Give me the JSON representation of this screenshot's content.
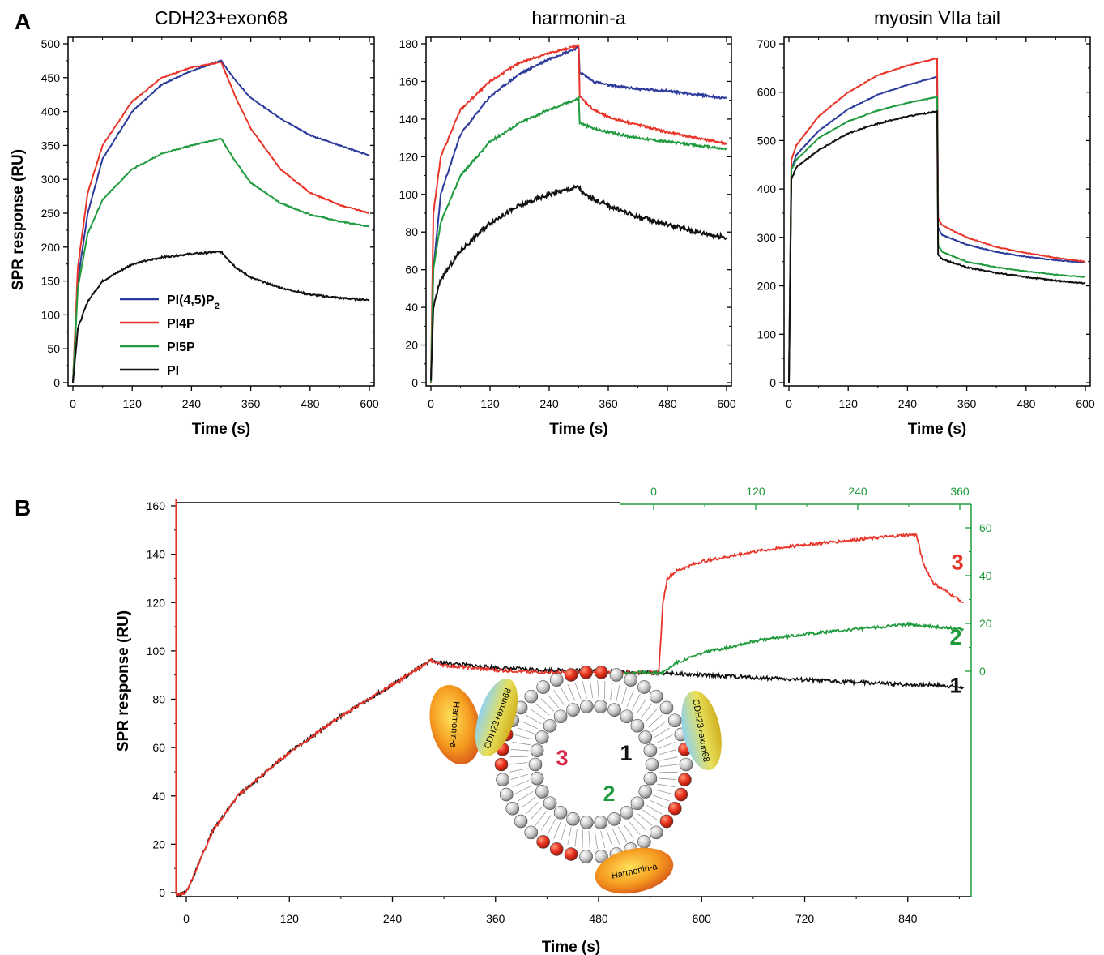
{
  "panels": {
    "a_label": "A",
    "b_label": "B"
  },
  "legend": [
    {
      "label": "PI(4,5)P",
      "sub": "2",
      "color": "#2b3a9b"
    },
    {
      "label": "PI4P",
      "sub": "",
      "color": "#e8352a"
    },
    {
      "label": "PI5P",
      "sub": "",
      "color": "#1f9a3c"
    },
    {
      "label": "PI",
      "sub": "",
      "color": "#111111"
    }
  ],
  "chart_data": [
    {
      "type": "line",
      "title": "CDH23+exon68",
      "xlabel": "Time (s)",
      "ylabel": "SPR response (RU)",
      "xlim": [
        0,
        600
      ],
      "ylim": [
        0,
        500
      ],
      "xticks": [
        0,
        120,
        240,
        360,
        480,
        600
      ],
      "yticks": [
        0,
        50,
        100,
        150,
        200,
        250,
        300,
        350,
        400,
        450,
        500
      ],
      "series": [
        {
          "name": "PI(4,5)P2",
          "color": "#2b3a9b",
          "x": [
            0,
            10,
            30,
            60,
            120,
            180,
            240,
            300,
            330,
            360,
            420,
            480,
            540,
            600
          ],
          "y": [
            0,
            150,
            250,
            330,
            400,
            440,
            460,
            475,
            445,
            420,
            390,
            365,
            350,
            335
          ]
        },
        {
          "name": "PI4P",
          "color": "#e8352a",
          "x": [
            0,
            10,
            30,
            60,
            120,
            180,
            240,
            300,
            330,
            360,
            420,
            480,
            540,
            600
          ],
          "y": [
            0,
            170,
            280,
            350,
            415,
            450,
            465,
            473,
            420,
            375,
            315,
            280,
            262,
            250
          ]
        },
        {
          "name": "PI5P",
          "color": "#1f9a3c",
          "x": [
            0,
            10,
            30,
            60,
            120,
            180,
            240,
            300,
            330,
            360,
            420,
            480,
            540,
            600
          ],
          "y": [
            0,
            140,
            220,
            270,
            315,
            338,
            350,
            360,
            325,
            295,
            265,
            248,
            238,
            230
          ]
        },
        {
          "name": "PI",
          "color": "#111111",
          "x": [
            0,
            10,
            30,
            60,
            120,
            180,
            240,
            300,
            330,
            360,
            420,
            480,
            540,
            600
          ],
          "y": [
            0,
            80,
            120,
            150,
            175,
            185,
            190,
            193,
            170,
            155,
            140,
            130,
            125,
            122
          ]
        }
      ]
    },
    {
      "type": "line",
      "title": "harmonin-a",
      "xlabel": "Time (s)",
      "xlim": [
        0,
        600
      ],
      "ylim": [
        0,
        180
      ],
      "xticks": [
        0,
        120,
        240,
        360,
        480,
        600
      ],
      "yticks": [
        0,
        20,
        40,
        60,
        80,
        100,
        120,
        140,
        160,
        180
      ],
      "series": [
        {
          "name": "PI(4,5)P2",
          "color": "#2b3a9b",
          "x": [
            0,
            5,
            20,
            60,
            120,
            180,
            240,
            300,
            302,
            330,
            360,
            420,
            480,
            540,
            600
          ],
          "y": [
            0,
            60,
            100,
            132,
            152,
            164,
            172,
            178,
            165,
            160,
            158,
            156,
            155,
            153,
            151
          ]
        },
        {
          "name": "PI4P",
          "color": "#e8352a",
          "x": [
            0,
            5,
            20,
            60,
            120,
            180,
            240,
            300,
            302,
            330,
            360,
            420,
            480,
            540,
            600
          ],
          "y": [
            0,
            90,
            120,
            145,
            160,
            170,
            175,
            179,
            152,
            145,
            141,
            137,
            133,
            130,
            127
          ]
        },
        {
          "name": "PI5P",
          "color": "#1f9a3c",
          "x": [
            0,
            5,
            20,
            60,
            120,
            180,
            240,
            300,
            302,
            330,
            360,
            420,
            480,
            540,
            600
          ],
          "y": [
            0,
            60,
            85,
            110,
            128,
            138,
            145,
            151,
            138,
            135,
            133,
            130,
            128,
            126,
            124
          ]
        },
        {
          "name": "PI",
          "color": "#111111",
          "x": [
            0,
            5,
            20,
            60,
            120,
            180,
            240,
            300,
            310,
            360,
            420,
            480,
            540,
            600
          ],
          "y": [
            0,
            40,
            55,
            70,
            85,
            94,
            100,
            104,
            100,
            94,
            88,
            84,
            80,
            77
          ]
        }
      ]
    },
    {
      "type": "line",
      "title": "myosin VIIa tail",
      "xlabel": "Time (s)",
      "xlim": [
        0,
        600
      ],
      "ylim": [
        0,
        700
      ],
      "xticks": [
        0,
        120,
        240,
        360,
        480,
        600
      ],
      "yticks": [
        0,
        100,
        200,
        300,
        400,
        500,
        600,
        700
      ],
      "series": [
        {
          "name": "PI(4,5)P2",
          "color": "#2b3a9b",
          "x": [
            0,
            5,
            15,
            60,
            120,
            180,
            240,
            300,
            302,
            310,
            360,
            420,
            480,
            540,
            600
          ],
          "y": [
            0,
            440,
            470,
            520,
            565,
            595,
            615,
            632,
            320,
            305,
            285,
            270,
            260,
            253,
            248
          ]
        },
        {
          "name": "PI4P",
          "color": "#e8352a",
          "x": [
            0,
            5,
            15,
            60,
            120,
            180,
            240,
            300,
            302,
            310,
            360,
            420,
            480,
            540,
            600
          ],
          "y": [
            0,
            460,
            490,
            550,
            600,
            635,
            655,
            670,
            340,
            325,
            300,
            280,
            268,
            258,
            250
          ]
        },
        {
          "name": "PI5P",
          "color": "#1f9a3c",
          "x": [
            0,
            5,
            15,
            60,
            120,
            180,
            240,
            300,
            302,
            310,
            360,
            420,
            480,
            540,
            600
          ],
          "y": [
            0,
            440,
            460,
            505,
            540,
            562,
            578,
            590,
            285,
            270,
            250,
            238,
            230,
            223,
            218
          ]
        },
        {
          "name": "PI",
          "color": "#111111",
          "x": [
            0,
            5,
            15,
            60,
            120,
            180,
            240,
            300,
            302,
            310,
            360,
            420,
            480,
            540,
            600
          ],
          "y": [
            0,
            420,
            445,
            480,
            515,
            535,
            550,
            560,
            265,
            255,
            238,
            227,
            218,
            211,
            205
          ]
        }
      ]
    },
    {
      "type": "line",
      "xlabel": "Time (s)",
      "ylabel": "SPR response (RU)",
      "xlim": [
        0,
        910
      ],
      "ylim": [
        0,
        160
      ],
      "xticks": [
        0,
        120,
        240,
        360,
        480,
        600,
        720,
        840
      ],
      "yticks": [
        0,
        20,
        40,
        60,
        80,
        100,
        120,
        140,
        160
      ],
      "secondary_axis": {
        "xlim": [
          0,
          360
        ],
        "ylim": [
          0,
          70
        ],
        "xticks": [
          0,
          120,
          240,
          360
        ],
        "yticks": [
          0,
          20,
          40,
          60
        ]
      },
      "series": [
        {
          "name": "1",
          "color": "#111111",
          "x": [
            -12,
            -12,
            -10,
            0,
            30,
            60,
            120,
            180,
            240,
            285,
            300,
            360,
            420,
            480,
            510,
            540,
            600,
            660,
            720,
            780,
            840,
            870,
            905
          ],
          "y": [
            163,
            0,
            -1,
            0,
            25,
            40,
            58,
            73,
            86,
            96,
            95,
            93,
            92,
            92,
            91,
            91,
            90,
            89,
            88,
            87,
            86,
            86,
            85
          ]
        },
        {
          "name": "2",
          "color": "#1f9a3c",
          "x": [
            510,
            540,
            555,
            570,
            600,
            660,
            720,
            780,
            840,
            870,
            905
          ],
          "y": [
            91,
            91,
            91,
            95,
            99,
            104,
            107,
            109,
            111,
            110,
            109
          ]
        },
        {
          "name": "3",
          "color": "#e8352a",
          "x": [
            -12,
            -12,
            -10,
            0,
            30,
            60,
            120,
            180,
            240,
            285,
            300,
            360,
            420,
            480,
            510,
            540,
            550,
            555,
            560,
            570,
            600,
            660,
            720,
            780,
            840,
            850,
            858,
            870,
            905
          ],
          "y": [
            163,
            0,
            -1,
            0,
            25,
            40,
            58,
            73,
            86,
            96,
            94,
            92,
            91,
            91,
            91,
            91,
            91,
            120,
            130,
            133,
            137,
            141,
            144,
            146,
            148,
            148,
            136,
            128,
            120
          ]
        }
      ],
      "curve_labels": [
        {
          "text": "1",
          "color": "#111111",
          "x": 860,
          "y": 86
        },
        {
          "text": "2",
          "color": "#1f9a3c",
          "x": 860,
          "y": 106
        },
        {
          "text": "3",
          "color": "#e8352a",
          "x": 862,
          "y": 137
        }
      ],
      "schematic": {
        "labels": [
          {
            "text": "Harmonin-a",
            "position": "upper-left"
          },
          {
            "text": "CDH23+exon68",
            "position": "upper-left"
          },
          {
            "text": "CDH23+exon68",
            "position": "right"
          },
          {
            "text": "Harmonin-a",
            "position": "bottom"
          }
        ],
        "markers": [
          {
            "text": "3",
            "color": "#d8284c"
          },
          {
            "text": "1",
            "color": "#111111"
          },
          {
            "text": "2",
            "color": "#1f9a3c"
          }
        ]
      }
    }
  ]
}
